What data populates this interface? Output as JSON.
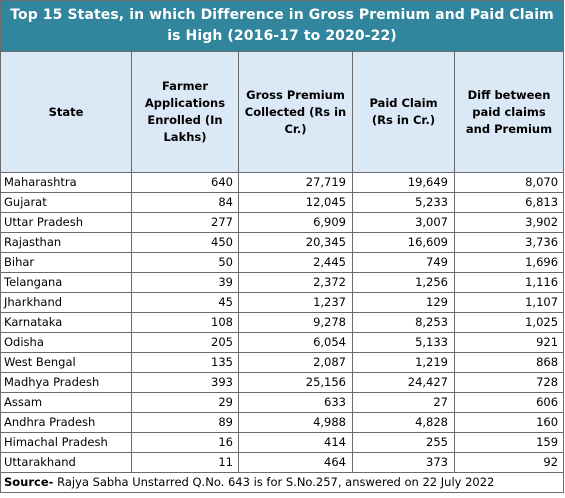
{
  "title": "Top 15 States, in which Difference in Gross Premium and Paid Claim is High (2016-17 to 2020-22)",
  "columns": [
    "State",
    "Farmer Applications Enrolled (In Lakhs)",
    "Gross Premium Collected (Rs in Cr.)",
    "Paid Claim (Rs in Cr.)",
    "Diff between paid claims and Premium"
  ],
  "rows": [
    [
      "Maharashtra",
      "640",
      "27,719",
      "19,649",
      "8,070"
    ],
    [
      "Gujarat",
      "84",
      "12,045",
      "5,233",
      "6,813"
    ],
    [
      "Uttar Pradesh",
      "277",
      "6,909",
      "3,007",
      "3,902"
    ],
    [
      "Rajasthan",
      "450",
      "20,345",
      "16,609",
      "3,736"
    ],
    [
      "Bihar",
      "50",
      "2,445",
      "749",
      "1,696"
    ],
    [
      "Telangana",
      "39",
      "2,372",
      "1,256",
      "1,116"
    ],
    [
      "Jharkhand",
      "45",
      "1,237",
      "129",
      "1,107"
    ],
    [
      "Karnataka",
      "108",
      "9,278",
      "8,253",
      "1,025"
    ],
    [
      "Odisha",
      "205",
      "6,054",
      "5,133",
      "921"
    ],
    [
      "West Bengal",
      "135",
      "2,087",
      "1,219",
      "868"
    ],
    [
      "Madhya Pradesh",
      "393",
      "25,156",
      "24,427",
      "728"
    ],
    [
      "Assam",
      "29",
      "633",
      "27",
      "606"
    ],
    [
      "Andhra Pradesh",
      "89",
      "4,988",
      "4,828",
      "160"
    ],
    [
      "Himachal Pradesh",
      "16",
      "414",
      "255",
      "159"
    ],
    [
      "Uttarakhand",
      "11",
      "464",
      "373",
      "92"
    ]
  ],
  "source": {
    "label": "Source-",
    "text": " Rajya Sabha Unstarred Q.No. 643 is for S.No.257, answered on 22 July 2022"
  },
  "colors": {
    "title_bg": "#31859c",
    "header_bg": "#dbe8f5",
    "border": "#6b6b6b"
  }
}
